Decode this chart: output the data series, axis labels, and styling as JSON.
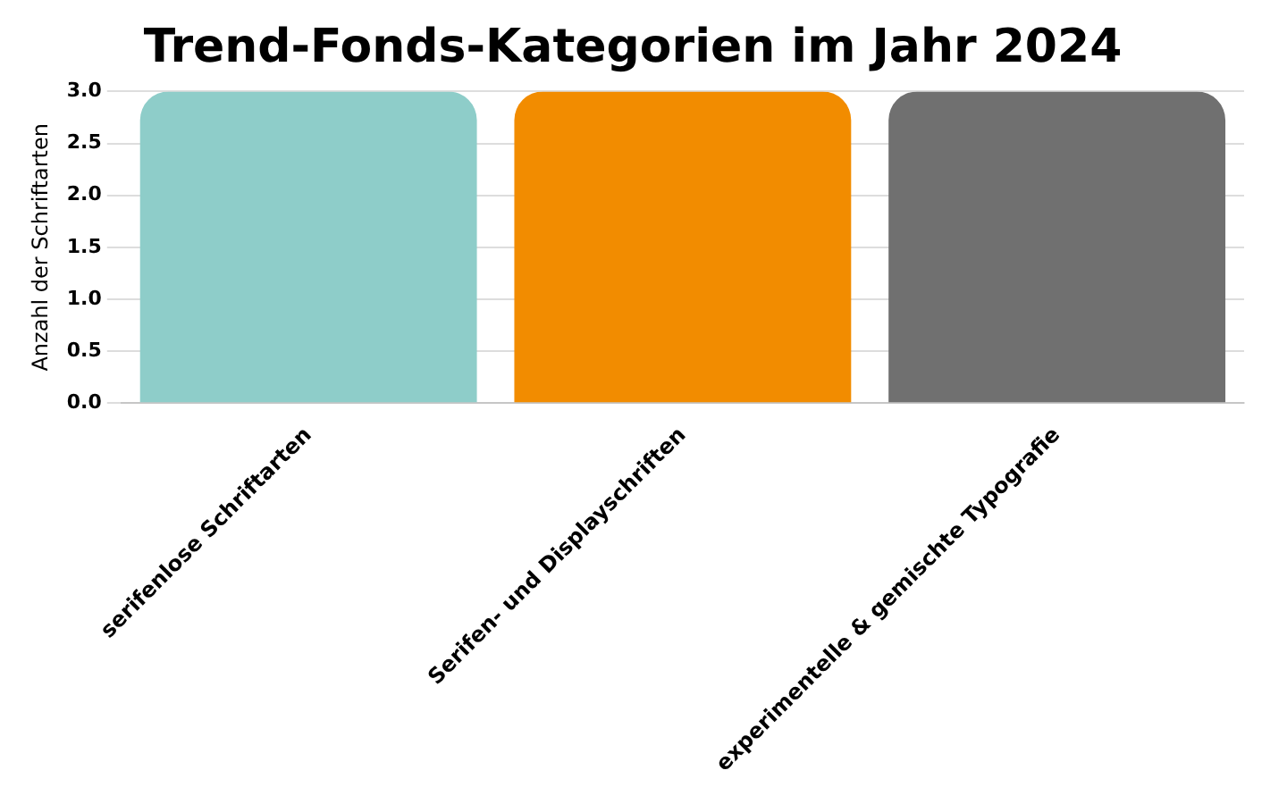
{
  "chart_data": {
    "type": "bar",
    "title": "Trend-Fonds-Kategorien im Jahr 2024",
    "ylabel": "Anzahl der Schriftarten",
    "categories": [
      "serifenlose Schriftarten",
      "Serifen- und Displayschriften",
      "experimentelle & gemischte Typografie"
    ],
    "values": [
      3,
      3,
      3
    ],
    "colors": [
      "#8ecdc9",
      "#f28c00",
      "#707070"
    ],
    "ylim": [
      0,
      3
    ],
    "yticks": [
      {
        "value": 0,
        "label": "0.0"
      },
      {
        "value": 0.5,
        "label": "0.5"
      },
      {
        "value": 1,
        "label": "1.0"
      },
      {
        "value": 1.5,
        "label": "1.5"
      },
      {
        "value": 2,
        "label": "2.0"
      },
      {
        "value": 2.5,
        "label": "2.5"
      },
      {
        "value": 3,
        "label": "3.0"
      }
    ],
    "grid": "y",
    "legend": false
  }
}
